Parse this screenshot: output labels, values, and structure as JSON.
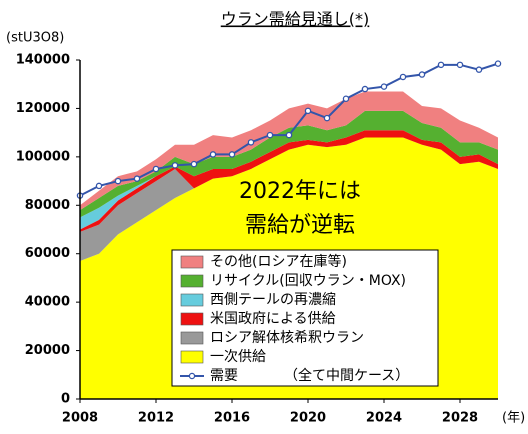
{
  "chart_data": {
    "type": "stacked_area_line",
    "title": "ウラン需給見通し(*)",
    "y_label": "(stU3O8)",
    "x_label": "(年)",
    "annotation": [
      "2022年には",
      "需給が逆転"
    ],
    "note": "（全て中間ケース）",
    "x": [
      2008,
      2009,
      2010,
      2011,
      2012,
      2013,
      2014,
      2015,
      2016,
      2017,
      2018,
      2019,
      2020,
      2021,
      2022,
      2023,
      2024,
      2025,
      2026,
      2027,
      2028,
      2029,
      2030
    ],
    "xlim": [
      2008,
      2030
    ],
    "xticks": [
      2008,
      2012,
      2016,
      2020,
      2024,
      2028
    ],
    "ylim": [
      0,
      140000
    ],
    "yticks": [
      0,
      20000,
      40000,
      60000,
      80000,
      100000,
      120000,
      140000
    ],
    "grid": false,
    "series": [
      {
        "name": "一次供給",
        "color": "#ffff00",
        "values": [
          57000,
          60000,
          68000,
          73000,
          78000,
          83000,
          87000,
          91000,
          92000,
          95000,
          99000,
          103000,
          105000,
          104000,
          105000,
          108000,
          108000,
          108000,
          105000,
          103000,
          97000,
          98000,
          95000
        ]
      },
      {
        "name": "ロシア解体核希釈ウラン",
        "color": "#999999",
        "values": [
          12000,
          12000,
          12000,
          12000,
          12000,
          12000,
          0,
          0,
          0,
          0,
          0,
          0,
          0,
          0,
          0,
          0,
          0,
          0,
          0,
          0,
          0,
          0,
          0
        ]
      },
      {
        "name": "米国政府による供給",
        "color": "#ee1111",
        "values": [
          1000,
          2000,
          2000,
          2000,
          2000,
          1000,
          5000,
          4000,
          3000,
          3000,
          3000,
          3000,
          2000,
          2000,
          3000,
          3000,
          3000,
          3000,
          2000,
          3000,
          3000,
          3000,
          2000
        ]
      },
      {
        "name": "西側テールの再濃縮",
        "color": "#66ccdd",
        "values": [
          5000,
          5000,
          2000,
          1000,
          0,
          0,
          0,
          0,
          0,
          0,
          0,
          0,
          0,
          0,
          0,
          0,
          0,
          0,
          0,
          0,
          0,
          0,
          0
        ]
      },
      {
        "name": "リサイクル(回収ウラン・MOX)",
        "color": "#55b030",
        "values": [
          3000,
          4000,
          4000,
          2000,
          2000,
          4000,
          5000,
          5000,
          5000,
          5000,
          6000,
          6000,
          6000,
          5000,
          5000,
          8000,
          8000,
          8000,
          7000,
          6000,
          6000,
          5000,
          6000
        ]
      },
      {
        "name": "その他(ロシア在庫等)",
        "color": "#f08080",
        "values": [
          2000,
          3000,
          4000,
          4000,
          5000,
          5000,
          8000,
          9000,
          8000,
          8000,
          7000,
          8000,
          9000,
          9000,
          11000,
          8000,
          8000,
          8000,
          7000,
          8000,
          9000,
          6000,
          5000
        ]
      },
      {
        "name": "需要",
        "color": "#3355aa",
        "kind": "line",
        "values": [
          84000,
          88000,
          90000,
          91000,
          95000,
          96500,
          97000,
          101000,
          101000,
          106000,
          109000,
          109000,
          119000,
          116000,
          124000,
          128000,
          129000,
          133000,
          134000,
          138000,
          138000,
          136000,
          138500
        ]
      }
    ]
  }
}
